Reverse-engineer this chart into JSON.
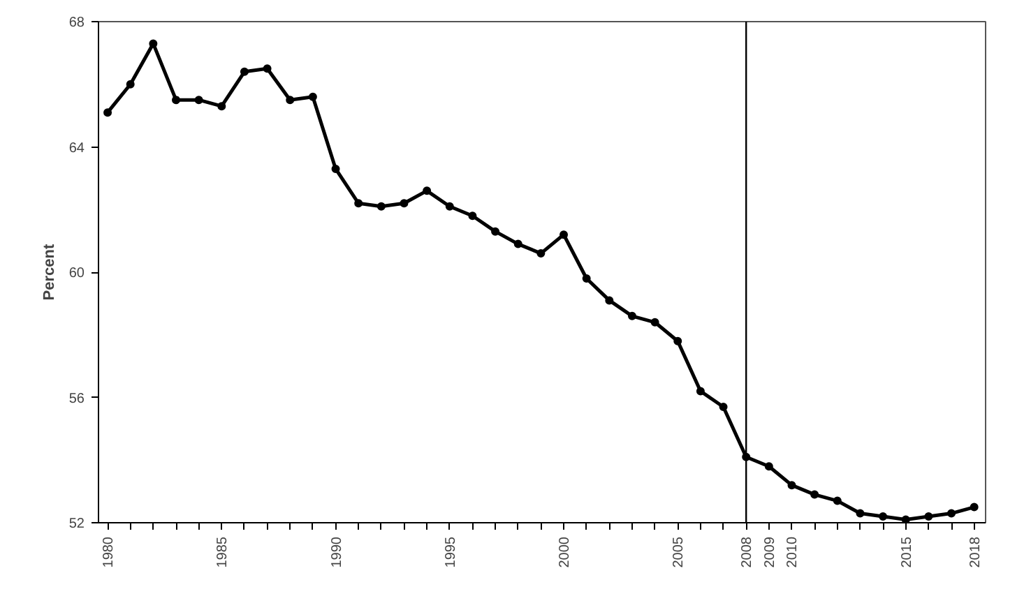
{
  "chart_data": {
    "type": "line",
    "ylabel": "Percent",
    "x": [
      1980,
      1981,
      1982,
      1983,
      1984,
      1985,
      1986,
      1987,
      1988,
      1989,
      1990,
      1991,
      1992,
      1993,
      1994,
      1995,
      1996,
      1997,
      1998,
      1999,
      2000,
      2001,
      2002,
      2003,
      2004,
      2005,
      2006,
      2007,
      2008,
      2009,
      2010,
      2011,
      2012,
      2013,
      2014,
      2015,
      2016,
      2017,
      2018
    ],
    "series": [
      {
        "color": "#000000",
        "values": [
          65.1,
          66.0,
          67.3,
          65.5,
          65.5,
          65.3,
          66.4,
          66.5,
          65.5,
          65.6,
          63.3,
          62.2,
          62.1,
          62.2,
          62.6,
          62.1,
          61.8,
          61.3,
          60.9,
          60.6,
          61.2,
          59.8,
          59.1,
          58.6,
          58.4,
          57.8,
          56.2,
          55.7,
          54.1,
          53.8,
          53.2,
          52.9,
          52.7,
          52.3,
          52.2,
          52.1,
          52.2,
          52.3,
          52.5
        ]
      }
    ],
    "xlim": [
      1979.6,
      2018.5
    ],
    "ylim": [
      52,
      68
    ],
    "yticks": [
      52,
      56,
      60,
      64,
      68
    ],
    "xticks": [
      1980,
      {
        "value": 1981,
        "label": null
      },
      {
        "value": 1982,
        "label": null
      },
      {
        "value": 1983,
        "label": null
      },
      {
        "value": 1984,
        "label": null
      },
      1985,
      {
        "value": 1986,
        "label": null
      },
      {
        "value": 1987,
        "label": null
      },
      {
        "value": 1988,
        "label": null
      },
      {
        "value": 1989,
        "label": null
      },
      1990,
      {
        "value": 1991,
        "label": null
      },
      {
        "value": 1992,
        "label": null
      },
      {
        "value": 1993,
        "label": null
      },
      {
        "value": 1994,
        "label": null
      },
      1995,
      {
        "value": 1996,
        "label": null
      },
      {
        "value": 1997,
        "label": null
      },
      {
        "value": 1998,
        "label": null
      },
      {
        "value": 1999,
        "label": null
      },
      2000,
      {
        "value": 2001,
        "label": null
      },
      {
        "value": 2002,
        "label": null
      },
      {
        "value": 2003,
        "label": null
      },
      {
        "value": 2004,
        "label": null
      },
      2005,
      {
        "value": 2006,
        "label": null
      },
      {
        "value": 2007,
        "label": null
      },
      2008,
      2009,
      2010,
      {
        "value": 2011,
        "label": null
      },
      {
        "value": 2012,
        "label": null
      },
      {
        "value": 2013,
        "label": null
      },
      {
        "value": 2014,
        "label": null
      },
      2015,
      {
        "value": 2016,
        "label": null
      },
      {
        "value": 2017,
        "label": null
      },
      2018
    ],
    "ref_lines": [
      {
        "axis": "x",
        "value": 2008,
        "color": "#000000"
      }
    ],
    "grid": false,
    "marker": "circle",
    "line_style": "solid"
  }
}
